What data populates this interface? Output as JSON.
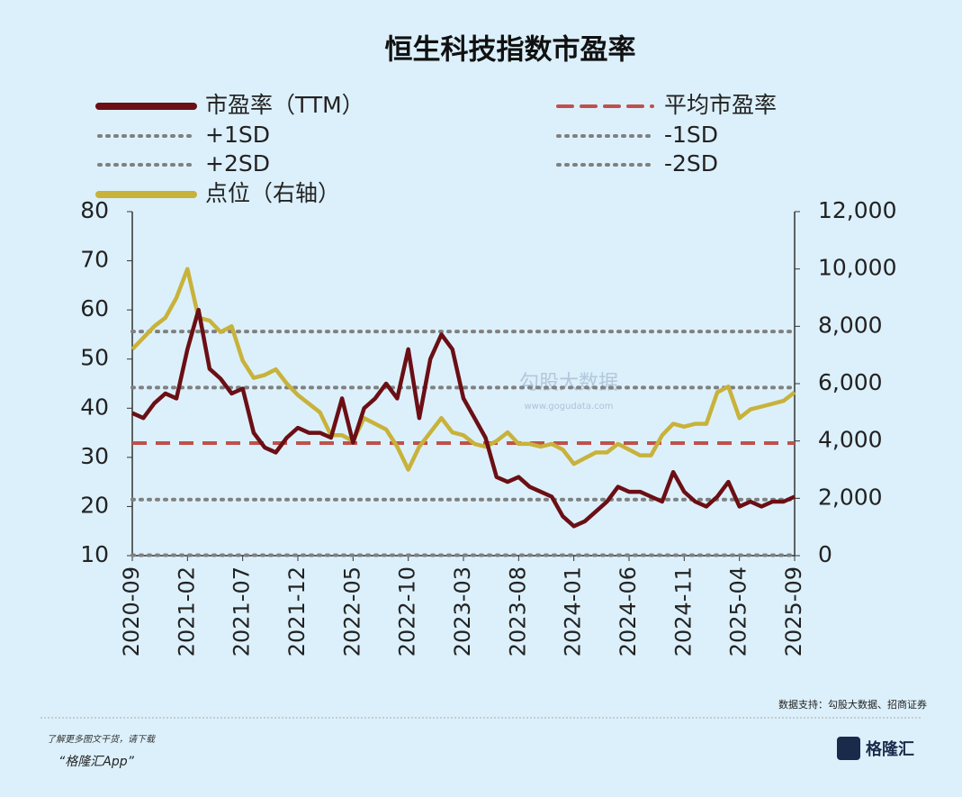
{
  "chart_data": {
    "type": "line",
    "title": "恒生科技指数市盈率",
    "x": [
      "2020-09",
      "2020-10",
      "2020-11",
      "2020-12",
      "2021-01",
      "2021-02",
      "2021-03",
      "2021-04",
      "2021-05",
      "2021-06",
      "2021-07",
      "2021-08",
      "2021-09",
      "2021-10",
      "2021-11",
      "2021-12",
      "2022-01",
      "2022-02",
      "2022-03",
      "2022-04",
      "2022-05",
      "2022-06",
      "2022-07",
      "2022-08",
      "2022-09",
      "2022-10",
      "2022-11",
      "2022-12",
      "2023-01",
      "2023-02",
      "2023-03",
      "2023-04",
      "2023-05",
      "2023-06",
      "2023-07",
      "2023-08",
      "2023-09",
      "2023-10",
      "2023-11",
      "2023-12",
      "2024-01",
      "2024-02",
      "2024-03",
      "2024-04",
      "2024-05",
      "2024-06",
      "2024-07",
      "2024-08",
      "2024-09",
      "2024-10",
      "2024-11",
      "2024-12",
      "2025-01",
      "2025-02",
      "2025-03",
      "2025-04",
      "2025-05",
      "2025-06",
      "2025-07",
      "2025-08",
      "2025-09"
    ],
    "xticks": [
      "2020-09",
      "2021-02",
      "2021-07",
      "2021-12",
      "2022-05",
      "2022-10",
      "2023-03",
      "2023-08",
      "2024-01",
      "2024-06",
      "2024-11",
      "2025-04",
      "2025-09"
    ],
    "series": [
      {
        "name": "市盈率（TTM）",
        "color": "#6b0f15",
        "axis": "y",
        "values": [
          39,
          38,
          41,
          43,
          42,
          52,
          60,
          48,
          46,
          43,
          44,
          35,
          32,
          31,
          34,
          36,
          35,
          35,
          34,
          42,
          33,
          40,
          42,
          45,
          42,
          52,
          38,
          50,
          55,
          52,
          42,
          38,
          34,
          26,
          25,
          26,
          24,
          23,
          22,
          18,
          16,
          17,
          19,
          21,
          24,
          23,
          23,
          22,
          21,
          27,
          23,
          21,
          20,
          22,
          25,
          20,
          21,
          20,
          21,
          21,
          22
        ]
      },
      {
        "name": "点位（右轴）",
        "color": "#c8b23a",
        "axis": "y2",
        "values": [
          7200,
          7600,
          8000,
          8300,
          9000,
          10000,
          8300,
          8200,
          7800,
          8000,
          6800,
          6200,
          6300,
          6500,
          6000,
          5600,
          5300,
          5000,
          4200,
          4200,
          4000,
          4800,
          4600,
          4400,
          3800,
          3000,
          3800,
          4300,
          4800,
          4300,
          4200,
          3900,
          3800,
          4000,
          4300,
          3900,
          3900,
          3800,
          3900,
          3700,
          3200,
          3400,
          3600,
          3600,
          3900,
          3700,
          3500,
          3500,
          4200,
          4600,
          4500,
          4600,
          4600,
          5700,
          5900,
          4800,
          5100,
          5200,
          5300,
          5400,
          5700
        ]
      }
    ],
    "reference_lines": [
      {
        "name": "平均市盈率",
        "value": 32.9,
        "color": "#c0504d",
        "style": "dashed"
      },
      {
        "name": "+1SD",
        "value": 44.2,
        "color": "#7f8080",
        "style": "dotted"
      },
      {
        "name": "-1SD",
        "value": 21.4,
        "color": "#7f8080",
        "style": "dotted"
      },
      {
        "name": "+2SD",
        "value": 55.6,
        "color": "#7f8080",
        "style": "dotted"
      },
      {
        "name": "-2SD",
        "value": 10.1,
        "color": "#7f8080",
        "style": "dotted"
      }
    ],
    "ylim": [
      10,
      80
    ],
    "yticks": [
      10,
      20,
      30,
      40,
      50,
      60,
      70,
      80
    ],
    "y2lim": [
      0,
      12000
    ],
    "y2ticks": [
      0,
      {
        "value": 2000,
        "label": "2,000"
      },
      {
        "value": 4000,
        "label": "4,000"
      },
      {
        "value": 6000,
        "label": "6,000"
      },
      {
        "value": 8000,
        "label": "8,000"
      },
      {
        "value": 10000,
        "label": "10,000"
      },
      {
        "value": 12000,
        "label": "12,000"
      }
    ],
    "source": "数据支持：勾股大数据、招商证券"
  },
  "watermark": {
    "name": "勾股大数据",
    "url": "www.gogudata.com"
  },
  "footer": {
    "prompt": "了解更多图文干货，请下载",
    "app": "“格隆汇App”",
    "logo": "格隆汇"
  }
}
